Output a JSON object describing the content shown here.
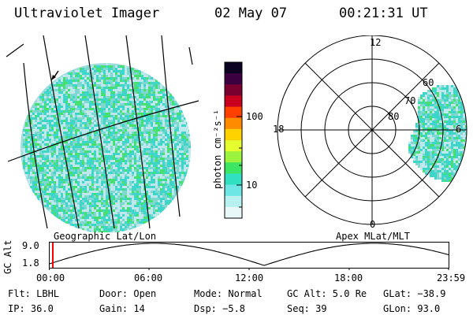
{
  "header": {
    "title": "Ultraviolet Imager",
    "date": "02 May 07",
    "time": "00:21:31 UT"
  },
  "geo_panel": {
    "label": "Geographic Lat/Lon"
  },
  "polar_panel": {
    "label": "Apex MLat/MLT",
    "mlt_labels": [
      "12",
      "18",
      "6",
      "0"
    ],
    "mlat_labels": [
      "60",
      "70",
      "80"
    ]
  },
  "colorbar": {
    "unit": "photon cm⁻²s⁻¹",
    "ticks": [
      "100",
      "10"
    ],
    "colors": [
      "#0a0220",
      "#3a0040",
      "#7a0030",
      "#c8001e",
      "#ff4000",
      "#ff8c00",
      "#ffd200",
      "#e6ff2e",
      "#9cf23c",
      "#3ce664",
      "#30e0c0",
      "#6ee6e6",
      "#b8f0f0",
      "#e8f8f8"
    ]
  },
  "altitude_strip": {
    "axis_label": "GC Alt",
    "y_ticks": [
      "9.0",
      "1.8"
    ],
    "x_ticks": [
      "00:00",
      "06:00",
      "12:00",
      "18:00",
      "23:59"
    ],
    "current_marker_color": "#ff0000"
  },
  "footer": {
    "row1": [
      {
        "key": "flt",
        "text": "Flt: LBHL"
      },
      {
        "key": "door",
        "text": "Door: Open"
      },
      {
        "key": "mode",
        "text": "Mode: Normal"
      },
      {
        "key": "gcalt",
        "text": "GC Alt: 5.0 Re"
      },
      {
        "key": "glat",
        "text": "GLat: −38.9"
      }
    ],
    "row2": [
      {
        "key": "ip",
        "text": "IP: 36.0"
      },
      {
        "key": "gain",
        "text": "Gain: 14"
      },
      {
        "key": "dsp",
        "text": "Dsp:   −5.8"
      },
      {
        "key": "seq",
        "text": "Seq: 39"
      },
      {
        "key": "glon",
        "text": "GLon:  93.0"
      }
    ]
  },
  "image_colors": {
    "aurora_base": "#3ed6c8",
    "aurora_light": "#bfe8ee",
    "aurora_green": "#46e070"
  }
}
